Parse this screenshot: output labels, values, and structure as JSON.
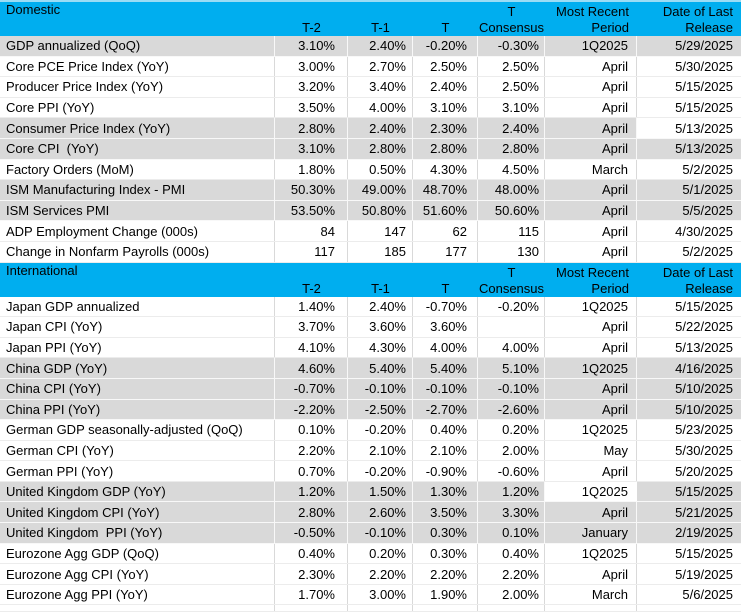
{
  "colors": {
    "header_bg": "#00AEEF",
    "row_gray": "#D9D9D9",
    "grid_light": "#D9D9D9",
    "grid_on_gray": "#FFFFFF",
    "top_border": "#9ADCF5",
    "text": "#000000"
  },
  "sections": [
    {
      "title": "Domestic",
      "columns": {
        "t2": "T-2",
        "t1": "T-1",
        "t": "T",
        "consensus": [
          "T",
          "Consensus"
        ],
        "period": [
          "Most Recent",
          "Period"
        ],
        "release": [
          "Date of Last",
          "Release"
        ]
      },
      "rows": [
        {
          "label": "GDP annualized (QoQ)",
          "t2": "3.10%",
          "t1": "2.40%",
          "t": "-0.20%",
          "consensus": "-0.30%",
          "period": "1Q2025",
          "release": "5/29/2025",
          "shade": "gray"
        },
        {
          "label": "Core PCE Price Index (YoY)",
          "t2": "3.00%",
          "t1": "2.70%",
          "t": "2.50%",
          "consensus": "2.50%",
          "period": "April",
          "release": "5/30/2025",
          "shade": "white"
        },
        {
          "label": "Producer Price Index (YoY)",
          "t2": "3.20%",
          "t1": "3.40%",
          "t": "2.40%",
          "consensus": "2.50%",
          "period": "April",
          "release": "5/15/2025",
          "shade": "white"
        },
        {
          "label": "Core PPI (YoY)",
          "t2": "3.50%",
          "t1": "4.00%",
          "t": "3.10%",
          "consensus": "3.10%",
          "period": "April",
          "release": "5/15/2025",
          "shade": "white"
        },
        {
          "label": "Consumer Price Index (YoY)",
          "t2": "2.80%",
          "t1": "2.40%",
          "t": "2.30%",
          "consensus": "2.40%",
          "period": "April",
          "release": "5/13/2025",
          "shade": "gray",
          "highlight": "release"
        },
        {
          "label": "Core CPI  (YoY)",
          "t2": "3.10%",
          "t1": "2.80%",
          "t": "2.80%",
          "consensus": "2.80%",
          "period": "April",
          "release": "5/13/2025",
          "shade": "gray"
        },
        {
          "label": "Factory Orders (MoM)",
          "t2": "1.80%",
          "t1": "0.50%",
          "t": "4.30%",
          "consensus": "4.50%",
          "period": "March",
          "release": "5/2/2025",
          "shade": "white"
        },
        {
          "label": "ISM Manufacturing Index - PMI",
          "t2": "50.30%",
          "t1": "49.00%",
          "t": "48.70%",
          "consensus": "48.00%",
          "period": "April",
          "release": "5/1/2025",
          "shade": "gray"
        },
        {
          "label": "ISM Services PMI",
          "t2": "53.50%",
          "t1": "50.80%",
          "t": "51.60%",
          "consensus": "50.60%",
          "period": "April",
          "release": "5/5/2025",
          "shade": "gray"
        },
        {
          "label": "ADP Employment Change (000s)",
          "t2": "84",
          "t1": "147",
          "t": "62",
          "consensus": "115",
          "period": "April",
          "release": "4/30/2025",
          "shade": "white"
        },
        {
          "label": "Change in Nonfarm Payrolls (000s)",
          "t2": "117",
          "t1": "185",
          "t": "177",
          "consensus": "130",
          "period": "April",
          "release": "5/2/2025",
          "shade": "white"
        }
      ]
    },
    {
      "title": "International",
      "columns": {
        "t2": "T-2",
        "t1": "T-1",
        "t": "T",
        "consensus": [
          "T",
          "Consensus"
        ],
        "period": [
          "Most Recent",
          "Period"
        ],
        "release": [
          "Date of Last",
          "Release"
        ]
      },
      "rows": [
        {
          "label": "Japan GDP annualized",
          "t2": "1.40%",
          "t1": "2.40%",
          "t": "-0.70%",
          "consensus": "-0.20%",
          "period": "1Q2025",
          "release": "5/15/2025",
          "shade": "white"
        },
        {
          "label": "Japan CPI (YoY)",
          "t2": "3.70%",
          "t1": "3.60%",
          "t": "3.60%",
          "consensus": "",
          "period": "April",
          "release": "5/22/2025",
          "shade": "white"
        },
        {
          "label": "Japan PPI (YoY)",
          "t2": "4.10%",
          "t1": "4.30%",
          "t": "4.00%",
          "consensus": "4.00%",
          "period": "April",
          "release": "5/13/2025",
          "shade": "white"
        },
        {
          "label": "China GDP (YoY)",
          "t2": "4.60%",
          "t1": "5.40%",
          "t": "5.40%",
          "consensus": "5.10%",
          "period": "1Q2025",
          "release": "4/16/2025",
          "shade": "gray"
        },
        {
          "label": "China CPI (YoY)",
          "t2": "-0.70%",
          "t1": "-0.10%",
          "t": "-0.10%",
          "consensus": "-0.10%",
          "period": "April",
          "release": "5/10/2025",
          "shade": "gray"
        },
        {
          "label": "China PPI (YoY)",
          "t2": "-2.20%",
          "t1": "-2.50%",
          "t": "-2.70%",
          "consensus": "-2.60%",
          "period": "April",
          "release": "5/10/2025",
          "shade": "gray"
        },
        {
          "label": "German GDP seasonally-adjusted (QoQ)",
          "t2": "0.10%",
          "t1": "-0.20%",
          "t": "0.40%",
          "consensus": "0.20%",
          "period": "1Q2025",
          "release": "5/23/2025",
          "shade": "white"
        },
        {
          "label": "German CPI (YoY)",
          "t2": "2.20%",
          "t1": "2.10%",
          "t": "2.10%",
          "consensus": "2.00%",
          "period": "May",
          "release": "5/30/2025",
          "shade": "white"
        },
        {
          "label": "German PPI (YoY)",
          "t2": "0.70%",
          "t1": "-0.20%",
          "t": "-0.90%",
          "consensus": "-0.60%",
          "period": "April",
          "release": "5/20/2025",
          "shade": "white"
        },
        {
          "label": "United Kingdom GDP (YoY)",
          "t2": "1.20%",
          "t1": "1.50%",
          "t": "1.30%",
          "consensus": "1.20%",
          "period": "1Q2025",
          "release": "5/15/2025",
          "shade": "gray",
          "highlight": "period"
        },
        {
          "label": "United Kingdom CPI (YoY)",
          "t2": "2.80%",
          "t1": "2.60%",
          "t": "3.50%",
          "consensus": "3.30%",
          "period": "April",
          "release": "5/21/2025",
          "shade": "gray"
        },
        {
          "label": "United Kingdom  PPI (YoY)",
          "t2": "-0.50%",
          "t1": "-0.10%",
          "t": "0.30%",
          "consensus": "0.10%",
          "period": "January",
          "release": "2/19/2025",
          "shade": "gray"
        },
        {
          "label": "Eurozone Agg GDP (QoQ)",
          "t2": "0.40%",
          "t1": "0.20%",
          "t": "0.30%",
          "consensus": "0.40%",
          "period": "1Q2025",
          "release": "5/15/2025",
          "shade": "white"
        },
        {
          "label": "Eurozone Agg CPI (YoY)",
          "t2": "2.30%",
          "t1": "2.20%",
          "t": "2.20%",
          "consensus": "2.20%",
          "period": "April",
          "release": "5/19/2025",
          "shade": "white"
        },
        {
          "label": "Eurozone Agg PPI (YoY)",
          "t2": "1.70%",
          "t1": "3.00%",
          "t": "1.90%",
          "consensus": "2.00%",
          "period": "March",
          "release": "5/6/2025",
          "shade": "white"
        }
      ]
    }
  ]
}
